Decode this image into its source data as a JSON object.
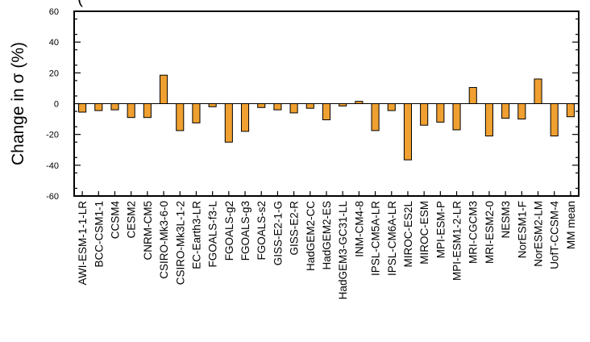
{
  "chart_data": {
    "type": "bar",
    "title": "(",
    "xlabel": "",
    "ylabel": "Change in σ (%)",
    "ylim": [
      -60,
      60
    ],
    "yticks": [
      -60,
      -40,
      -20,
      0,
      20,
      40,
      60
    ],
    "grid": false,
    "bar_color": "#f0a030",
    "categories": [
      "AWI-ESM-1-1-LR",
      "BCC-CSM1-1",
      "CCSM4",
      "CESM2",
      "CNRM-CM5",
      "CSIRO-Mk3-6-0",
      "CSIRO-Mk3L-1-2",
      "EC-Earth3-LR",
      "FGOALS-f3-L",
      "FGOALS-g2",
      "FGOALS-g3",
      "FGOALS-s2",
      "GISS-E2-1-G",
      "GISS-E2-R",
      "HadGEM2-CC",
      "HadGEM2-ES",
      "HadGEM3-GC31-LL",
      "INM-CM4-8",
      "IPSL-CM5A-LR",
      "IPSL-CM6A-LR",
      "MIROC-ES2L",
      "MIROC-ESM",
      "MPI-ESM-P",
      "MPI-ESM1-2-LR",
      "MRI-CGCM3",
      "MRI-ESM2-0",
      "NESM3",
      "NorESM1-F",
      "NorESM2-LM",
      "UofT-CCSM-4",
      "MM mean"
    ],
    "values": [
      -5.5,
      -4.5,
      -4,
      -9,
      -9,
      18.5,
      -17.5,
      -12.5,
      -2,
      -25,
      -18,
      -2.5,
      -4,
      -6,
      -3,
      -10.5,
      -1.5,
      1.5,
      -17.5,
      -4.5,
      -36.5,
      -14,
      -12,
      -17,
      10.5,
      -21,
      -9.5,
      -10,
      16,
      -21,
      -8.5
    ]
  }
}
